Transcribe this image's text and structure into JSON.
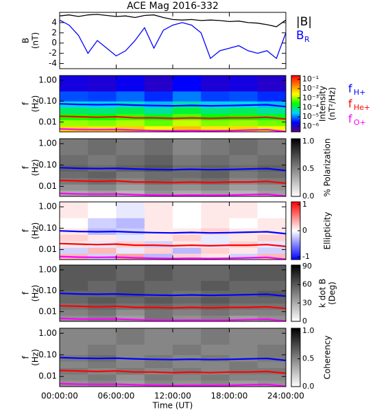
{
  "chart_data": [
    {
      "type": "line",
      "title": "ACE Mag 2016-332",
      "ylabel": [
        "B",
        "(nT)"
      ],
      "x": [
        0,
        1,
        2,
        3,
        4,
        5,
        6,
        7,
        8,
        9,
        10,
        11,
        12,
        13,
        14,
        15,
        16,
        17,
        18,
        19,
        20,
        21,
        22,
        23,
        24
      ],
      "xlim": [
        0,
        24
      ],
      "xticks": [
        0,
        6,
        12,
        18,
        24
      ],
      "ylim": [
        -5,
        6
      ],
      "yticks": [
        -4,
        -2,
        0,
        2,
        4
      ],
      "series": [
        {
          "name": "|B|",
          "color": "#000000",
          "values": [
            5.3,
            5.5,
            5.2,
            5.5,
            5.6,
            5.4,
            5.2,
            5.3,
            5.0,
            5.4,
            5.5,
            5.0,
            4.6,
            4.5,
            4.6,
            4.4,
            4.5,
            4.4,
            4.2,
            4.3,
            4.0,
            3.9,
            3.6,
            3.2,
            4.5
          ]
        },
        {
          "name": "B",
          "subscript": "R",
          "color": "#0000ff",
          "values": [
            4.5,
            3.5,
            1.5,
            -2,
            0.5,
            -1,
            -2.5,
            -1.5,
            0.5,
            3,
            -1,
            2.5,
            3.5,
            4,
            3.5,
            2,
            -3,
            -1.5,
            -1,
            -0.5,
            -1.5,
            -2,
            -1.5,
            -3,
            2
          ]
        }
      ]
    },
    {
      "type": "heatmap",
      "ylabel": [
        "f",
        "(Hz)"
      ],
      "zlabel": [
        "Intensity",
        "(nT²/Hz)"
      ],
      "xlim": [
        0,
        24
      ],
      "xticks": [
        0,
        6,
        12,
        18,
        24
      ],
      "log": true,
      "ylim": [
        0.0034,
        1.7
      ],
      "yticks": [
        {
          "value": 0.01,
          "label": "0.01"
        },
        {
          "value": 0.1,
          "label": "0.10"
        },
        {
          "value": 1,
          "label": "1.00"
        }
      ],
      "x_bins": [
        0,
        3,
        6,
        9,
        12,
        15,
        18,
        21,
        24
      ],
      "y_bins": [
        0.0034,
        0.0065,
        0.0125,
        0.025,
        0.05,
        0.1,
        0.3,
        1.7
      ],
      "zlog": true,
      "zlim": [
        2.5e-07,
        0.25
      ],
      "zticks": [
        {
          "value": 0.1,
          "label": "10⁻¹"
        },
        {
          "value": 0.01,
          "label": "10⁻²"
        },
        {
          "value": 0.001,
          "label": "10⁻³"
        },
        {
          "value": 0.0001,
          "label": "10⁻⁴"
        },
        {
          "value": 1e-05,
          "label": "10⁻⁵"
        },
        {
          "value": 1e-06,
          "label": "10⁻⁶"
        }
      ],
      "colormap": [
        "#5a007a",
        "#0000ff",
        "#00d0ff",
        "#00ff00",
        "#ffff00",
        "#ff8000",
        "#ff0000"
      ],
      "z": [
        [
          0.005,
          0.004,
          0.006,
          0.003,
          0.008,
          0.004,
          0.005,
          0.003
        ],
        [
          0.001,
          0.0008,
          0.0012,
          0.0006,
          0.0015,
          0.0008,
          0.001,
          0.0007
        ],
        [
          0.0003,
          0.00025,
          0.0004,
          0.0002,
          0.0005,
          0.00025,
          0.0003,
          0.0002
        ],
        [
          0.0001,
          8e-05,
          0.00012,
          6e-05,
          0.00015,
          8e-05,
          0.0001,
          6e-05
        ],
        [
          3e-05,
          2.5e-05,
          4e-05,
          2e-05,
          5e-05,
          2.5e-05,
          3e-05,
          2e-05
        ],
        [
          6e-06,
          5e-06,
          8e-06,
          4e-06,
          1e-05,
          5e-06,
          6e-06,
          4e-06
        ],
        [
          1.5e-06,
          1.2e-06,
          2e-06,
          1e-06,
          2.5e-06,
          1.2e-06,
          1.5e-06,
          1e-06
        ]
      ],
      "x": [
        0,
        2,
        4,
        6,
        8,
        10,
        12,
        14,
        16,
        18,
        20,
        22,
        24
      ],
      "series": [
        {
          "name": "f",
          "subscript": "H+",
          "color": "#0000ff",
          "values": [
            0.075,
            0.07,
            0.068,
            0.07,
            0.065,
            0.062,
            0.06,
            0.063,
            0.06,
            0.062,
            0.065,
            0.068,
            0.055
          ]
        },
        {
          "name": "f",
          "subscript": "He+",
          "color": "#ff0000",
          "values": [
            0.019,
            0.018,
            0.017,
            0.018,
            0.016,
            0.016,
            0.015,
            0.016,
            0.015,
            0.016,
            0.016,
            0.017,
            0.014
          ]
        },
        {
          "name": "f",
          "subscript": "O+",
          "color": "#ff00ff",
          "values": [
            0.0047,
            0.0044,
            0.0043,
            0.0044,
            0.0041,
            0.0039,
            0.0038,
            0.0039,
            0.0038,
            0.0039,
            0.0041,
            0.0043,
            0.0035
          ]
        }
      ]
    },
    {
      "type": "heatmap",
      "ylabel": [
        "f",
        "(Hz)"
      ],
      "zlabel": [
        "% Polarization"
      ],
      "xlim": [
        0,
        24
      ],
      "xticks": [
        0,
        6,
        12,
        18,
        24
      ],
      "log": true,
      "ylim": [
        0.0034,
        1.7
      ],
      "yticks": [
        {
          "value": 0.01,
          "label": "0.01"
        },
        {
          "value": 0.1,
          "label": "0.10"
        },
        {
          "value": 1,
          "label": "1.00"
        }
      ],
      "x_bins": [
        0,
        3,
        6,
        9,
        12,
        15,
        18,
        21,
        24
      ],
      "y_bins": [
        0.0034,
        0.0065,
        0.0125,
        0.025,
        0.05,
        0.1,
        0.3,
        1.7
      ],
      "zlim": [
        0,
        1.05
      ],
      "zticks": [
        {
          "value": 0,
          "label": "0.0"
        },
        {
          "value": 0.5,
          "label": "0.5"
        },
        {
          "value": 1,
          "label": "1.0"
        }
      ],
      "colormap": [
        "#ffffff",
        "#000000"
      ],
      "z": [
        [
          0.35,
          0.4,
          0.3,
          0.45,
          0.35,
          0.4,
          0.3,
          0.4
        ],
        [
          0.45,
          0.5,
          0.4,
          0.5,
          0.45,
          0.5,
          0.4,
          0.45
        ],
        [
          0.55,
          0.6,
          0.5,
          0.6,
          0.55,
          0.6,
          0.5,
          0.55
        ],
        [
          0.6,
          0.65,
          0.55,
          0.6,
          0.6,
          0.65,
          0.55,
          0.6
        ],
        [
          0.65,
          0.6,
          0.65,
          0.7,
          0.6,
          0.65,
          0.6,
          0.65
        ],
        [
          0.6,
          0.55,
          0.6,
          0.65,
          0.55,
          0.6,
          0.55,
          0.6
        ],
        [
          0.55,
          0.6,
          0.55,
          0.6,
          0.5,
          0.55,
          0.6,
          0.55
        ]
      ]
    },
    {
      "type": "heatmap",
      "ylabel": [
        "f",
        "(Hz)"
      ],
      "zlabel": [
        "Ellipticity"
      ],
      "xlim": [
        0,
        24
      ],
      "xticks": [
        0,
        6,
        12,
        18,
        24
      ],
      "log": true,
      "ylim": [
        0.0034,
        1.7
      ],
      "yticks": [
        {
          "value": 0.01,
          "label": "0.01"
        },
        {
          "value": 0.1,
          "label": "0.10"
        },
        {
          "value": 1,
          "label": "1.00"
        }
      ],
      "x_bins": [
        0,
        3,
        6,
        9,
        12,
        15,
        18,
        21,
        24
      ],
      "y_bins": [
        0.0034,
        0.0065,
        0.0125,
        0.025,
        0.05,
        0.1,
        0.3,
        1.7
      ],
      "zlim": [
        -1.1,
        1.1
      ],
      "zticks": [
        -1,
        0,
        1
      ],
      "colormap": [
        "#0000ff",
        "#ffffff",
        "#ff0000"
      ],
      "z": [
        [
          0.3,
          -0.2,
          0.4,
          -0.3,
          0.2,
          0.1,
          -0.2,
          0.3
        ],
        [
          -0.2,
          0.3,
          -0.1,
          0.2,
          -0.3,
          0.2,
          0.1,
          -0.2
        ],
        [
          0.1,
          -0.1,
          0.2,
          -0.2,
          0.1,
          -0.1,
          0.2,
          -0.1
        ],
        [
          0.2,
          0.1,
          -0.1,
          0.1,
          0.2,
          -0.1,
          0.1,
          0.2
        ],
        [
          0.1,
          -0.3,
          -0.2,
          0.1,
          0.1,
          0.2,
          0.1,
          0.1
        ],
        [
          0.0,
          -0.2,
          -0.3,
          0.1,
          0.0,
          0.1,
          0.0,
          0.1
        ],
        [
          0.1,
          0.0,
          -0.1,
          0.1,
          0.0,
          0.1,
          0.1,
          0.0
        ]
      ]
    },
    {
      "type": "heatmap",
      "ylabel": [
        "f",
        "(Hz)"
      ],
      "zlabel": [
        "k dot B",
        "(Deg)"
      ],
      "xlim": [
        0,
        24
      ],
      "xticks": [
        0,
        6,
        12,
        18,
        24
      ],
      "log": true,
      "ylim": [
        0.0034,
        1.7
      ],
      "yticks": [
        {
          "value": 0.01,
          "label": "0.01"
        },
        {
          "value": 0.1,
          "label": "0.10"
        },
        {
          "value": 1,
          "label": "1.00"
        }
      ],
      "x_bins": [
        0,
        3,
        6,
        9,
        12,
        15,
        18,
        21,
        24
      ],
      "y_bins": [
        0.0034,
        0.0065,
        0.0125,
        0.025,
        0.05,
        0.1,
        0.3,
        1.7
      ],
      "zlim": [
        0,
        92
      ],
      "zticks": [
        0,
        30,
        60,
        90
      ],
      "colormap": [
        "#ffffff",
        "#000000"
      ],
      "z": [
        [
          40,
          45,
          35,
          50,
          40,
          45,
          35,
          40
        ],
        [
          45,
          50,
          40,
          50,
          45,
          50,
          45,
          45
        ],
        [
          50,
          55,
          50,
          55,
          50,
          55,
          50,
          50
        ],
        [
          55,
          60,
          55,
          60,
          55,
          60,
          55,
          55
        ],
        [
          55,
          55,
          60,
          55,
          50,
          55,
          55,
          60
        ],
        [
          60,
          55,
          60,
          55,
          55,
          60,
          55,
          55
        ],
        [
          60,
          60,
          55,
          60,
          55,
          55,
          60,
          60
        ]
      ]
    },
    {
      "type": "heatmap",
      "ylabel": [
        "f",
        "(Hz)"
      ],
      "zlabel": [
        "Coherency"
      ],
      "xlabel": "Time (UT)",
      "xlim": [
        0,
        24
      ],
      "xticks": [
        {
          "value": 0,
          "label": "00:00:00"
        },
        {
          "value": 6,
          "label": "06:00:00"
        },
        {
          "value": 12,
          "label": "12:00:00"
        },
        {
          "value": 18,
          "label": "18:00:00"
        },
        {
          "value": 24,
          "label": "24:00:00"
        }
      ],
      "log": true,
      "ylim": [
        0.0034,
        1.7
      ],
      "yticks": [
        {
          "value": 0.01,
          "label": "0.01"
        },
        {
          "value": 0.1,
          "label": "0.10"
        },
        {
          "value": 1,
          "label": "1.00"
        }
      ],
      "x_bins": [
        0,
        3,
        6,
        9,
        12,
        15,
        18,
        21,
        24
      ],
      "y_bins": [
        0.0034,
        0.0065,
        0.0125,
        0.025,
        0.05,
        0.1,
        0.3,
        1.7
      ],
      "zlim": [
        0,
        1.05
      ],
      "zticks": [
        {
          "value": 0,
          "label": "0.0"
        },
        {
          "value": 0.5,
          "label": "0.5"
        },
        {
          "value": 1,
          "label": "1.0"
        }
      ],
      "colormap": [
        "#ffffff",
        "#000000"
      ],
      "z": [
        [
          0.45,
          0.5,
          0.4,
          0.5,
          0.45,
          0.5,
          0.4,
          0.45
        ],
        [
          0.5,
          0.55,
          0.45,
          0.55,
          0.5,
          0.55,
          0.5,
          0.5
        ],
        [
          0.55,
          0.5,
          0.55,
          0.5,
          0.55,
          0.5,
          0.55,
          0.55
        ],
        [
          0.5,
          0.55,
          0.5,
          0.55,
          0.5,
          0.5,
          0.55,
          0.5
        ],
        [
          0.55,
          0.6,
          0.5,
          0.55,
          0.5,
          0.55,
          0.5,
          0.55
        ],
        [
          0.5,
          0.55,
          0.5,
          0.5,
          0.55,
          0.5,
          0.5,
          0.55
        ],
        [
          0.5,
          0.5,
          0.55,
          0.5,
          0.5,
          0.55,
          0.5,
          0.5
        ]
      ]
    }
  ]
}
